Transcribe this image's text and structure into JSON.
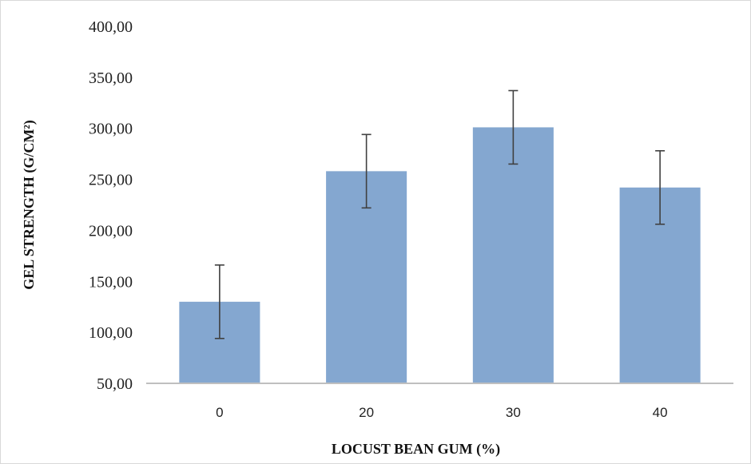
{
  "chart_data": {
    "type": "bar",
    "title": "",
    "xlabel": "LOCUST BEAN GUM (%)",
    "ylabel": "GEL STRENGTH (G/CM²)",
    "categories": [
      "0",
      "20",
      "30",
      "40"
    ],
    "values": [
      130,
      258,
      301,
      242
    ],
    "error": [
      36,
      36,
      36,
      36
    ],
    "ylim": [
      50,
      400
    ],
    "yticks": [
      "50,00",
      "100,00",
      "150,00",
      "200,00",
      "250,00",
      "300,00",
      "350,00",
      "400,00"
    ],
    "ytick_values": [
      50,
      100,
      150,
      200,
      250,
      300,
      350,
      400
    ],
    "grid": false,
    "legend": "none",
    "colors": {
      "bar": "#84a7d0",
      "error_bar": "#404040",
      "axis": "#bfbfbf"
    }
  }
}
